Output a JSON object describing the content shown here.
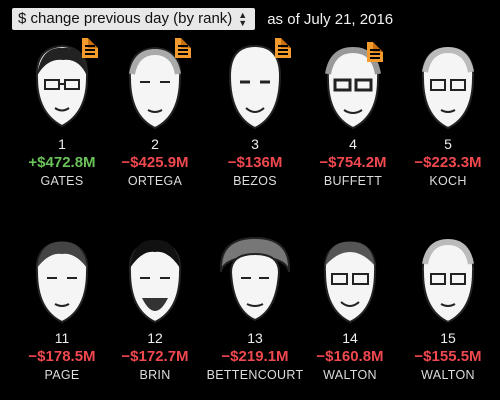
{
  "header": {
    "dropdown_label": "$ change previous day (by rank)",
    "as_of": "as of July 21, 2016"
  },
  "people": [
    {
      "rank": "1",
      "change": "+$472.8M",
      "direction": "up",
      "name": "GATES",
      "has_doc": true
    },
    {
      "rank": "2",
      "change": "−$425.9M",
      "direction": "down",
      "name": "ORTEGA",
      "has_doc": true
    },
    {
      "rank": "3",
      "change": "−$136M",
      "direction": "down",
      "name": "BEZOS",
      "has_doc": true
    },
    {
      "rank": "4",
      "change": "−$754.2M",
      "direction": "down",
      "name": "BUFFETT",
      "has_doc": true
    },
    {
      "rank": "5",
      "change": "−$223.3M",
      "direction": "down",
      "name": "KOCH",
      "has_doc": false
    },
    {
      "rank": "11",
      "change": "−$178.5M",
      "direction": "down",
      "name": "PAGE",
      "has_doc": false
    },
    {
      "rank": "12",
      "change": "−$172.7M",
      "direction": "down",
      "name": "BRIN",
      "has_doc": false
    },
    {
      "rank": "13",
      "change": "−$219.1M",
      "direction": "down",
      "name": "BETTENCOURT",
      "has_doc": false
    },
    {
      "rank": "14",
      "change": "−$160.8M",
      "direction": "down",
      "name": "WALTON",
      "has_doc": false
    },
    {
      "rank": "15",
      "change": "−$155.5M",
      "direction": "down",
      "name": "WALTON",
      "has_doc": false
    }
  ],
  "colors": {
    "up": "#6ac259",
    "down": "#f0484f",
    "doc_icon": "#f29a2e"
  },
  "icons": {
    "dropdown": "sort-arrows-icon",
    "doc": "document-icon"
  }
}
